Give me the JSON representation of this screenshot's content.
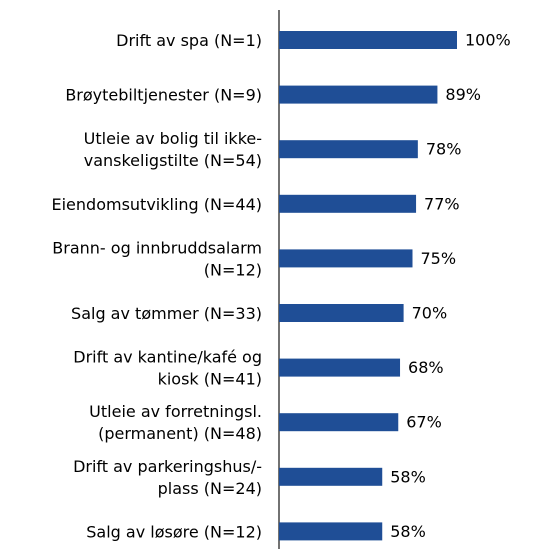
{
  "chart_data": {
    "type": "bar",
    "orientation": "horizontal",
    "color": "#1f4e96",
    "categories": [
      [
        "Drift av spa (N=1)"
      ],
      [
        "Brøytebiltjenester (N=9)"
      ],
      [
        "Utleie av bolig til ikke-",
        "vanskeligstilte (N=54)"
      ],
      [
        "Eiendomsutvikling (N=44)"
      ],
      [
        "Brann- og innbruddsalarm",
        "(N=12)"
      ],
      [
        "Salg av tømmer (N=33)"
      ],
      [
        "Drift av kantine/kafé og",
        "kiosk (N=41)"
      ],
      [
        "Utleie av forretningsl.",
        "(permanent) (N=48)"
      ],
      [
        "Drift av parkeringshus/-",
        "plass (N=24)"
      ],
      [
        "Salg av løsøre (N=12)"
      ]
    ],
    "values": [
      100,
      89,
      78,
      77,
      75,
      70,
      68,
      67,
      58,
      58
    ],
    "value_labels": [
      "100%",
      "89%",
      "78%",
      "77%",
      "75%",
      "70%",
      "68%",
      "67%",
      "58%",
      "58%"
    ],
    "xlim": [
      0,
      100
    ]
  }
}
